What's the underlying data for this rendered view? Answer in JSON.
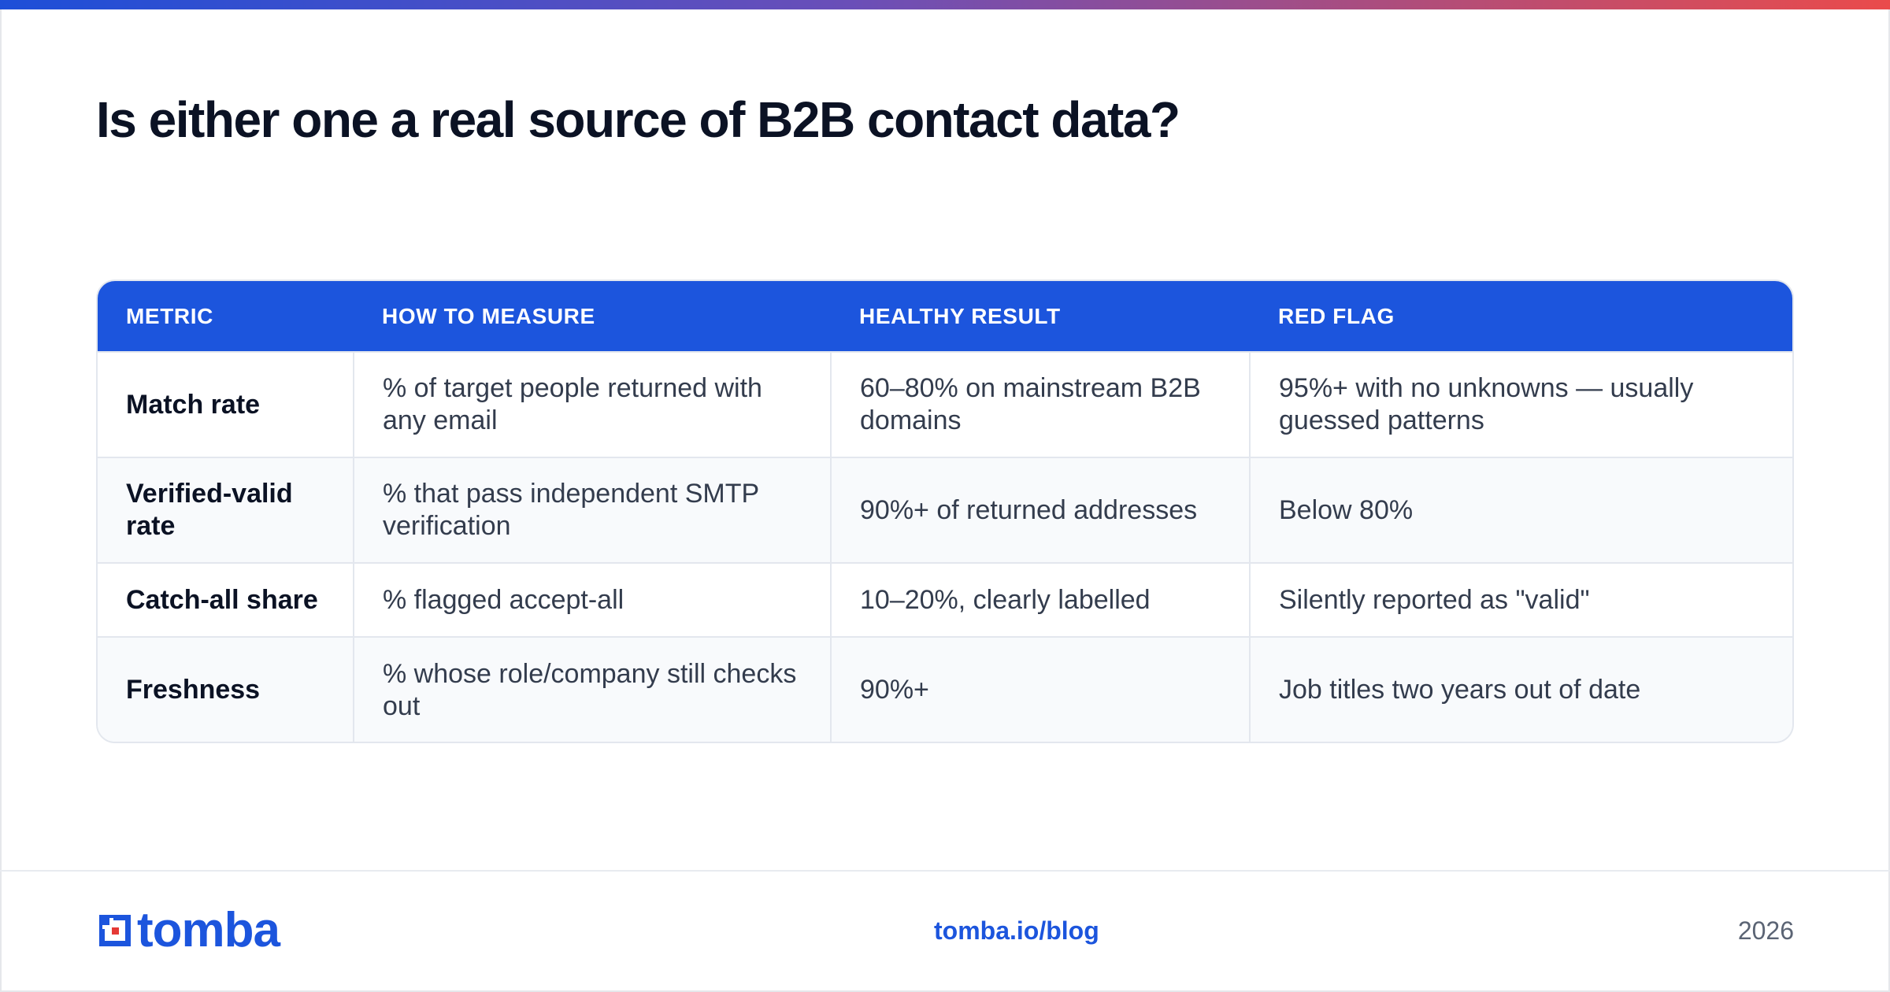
{
  "title": "Is either one a real source of B2B contact data?",
  "table": {
    "headers": [
      "METRIC",
      "HOW TO MEASURE",
      "HEALTHY RESULT",
      "RED FLAG"
    ],
    "rows": [
      {
        "metric": "Match rate",
        "measure": "% of target people returned with any email",
        "healthy": "60–80% on mainstream B2B domains",
        "red_flag": "95%+ with no unknowns — usually guessed patterns"
      },
      {
        "metric": "Verified-valid rate",
        "measure": "% that pass independent SMTP verification",
        "healthy": "90%+ of returned addresses",
        "red_flag": "Below 80%"
      },
      {
        "metric": "Catch-all share",
        "measure": "% flagged accept-all",
        "healthy": "10–20%, clearly labelled",
        "red_flag": "Silently reported as \"valid\""
      },
      {
        "metric": "Freshness",
        "measure": "% whose role/company still checks out",
        "healthy": "90%+",
        "red_flag": "Job titles two years out of date"
      }
    ]
  },
  "footer": {
    "logo_text": "tomba",
    "link": "tomba.io/blog",
    "year": "2026"
  },
  "colors": {
    "accent": "#1c55dd",
    "logo_red": "#e53935",
    "title": "#0b1224"
  },
  "icons": {
    "logo_mark": "tomba-logo-mark-icon"
  }
}
